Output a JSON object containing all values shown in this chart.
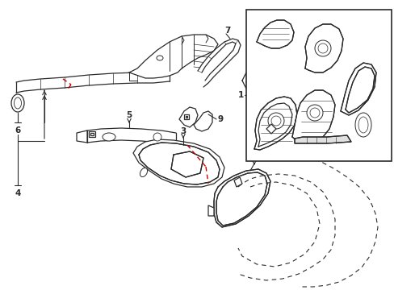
{
  "bg_color": "#ffffff",
  "line_color": "#2a2a2a",
  "red_color": "#cc0000",
  "fig_width": 4.89,
  "fig_height": 3.6,
  "dpi": 100
}
